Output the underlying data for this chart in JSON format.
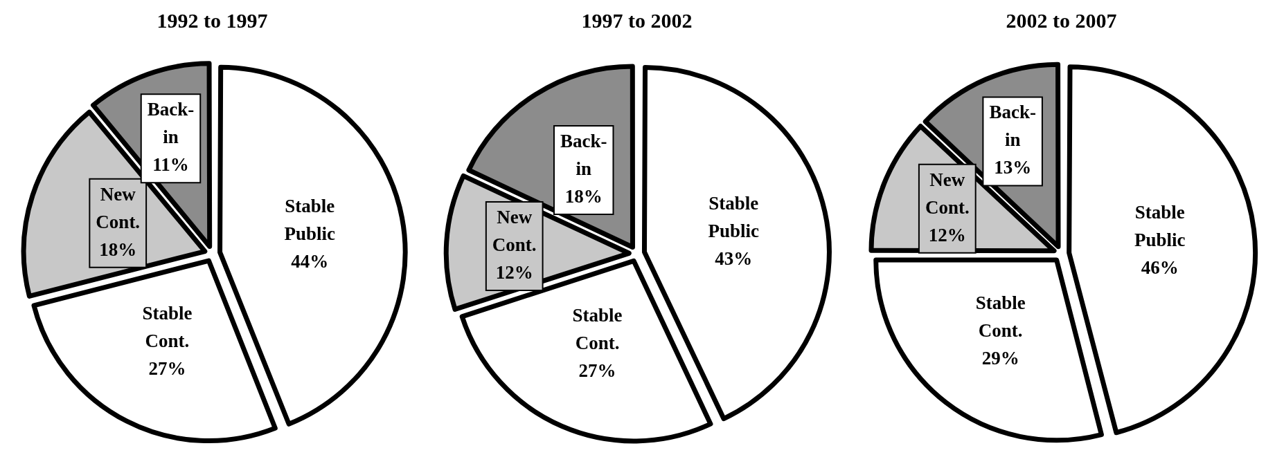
{
  "chart_data": [
    {
      "type": "pie",
      "title": "1992 to 1997",
      "categories": [
        "Stable Public",
        "Stable Cont.",
        "New Cont.",
        "Back-in"
      ],
      "values": [
        44,
        27,
        18,
        11
      ],
      "colors": [
        "#ffffff",
        "#ffffff",
        "#c8c8c8",
        "#8c8c8c"
      ],
      "value_labels": [
        "44%",
        "27%",
        "18%",
        "11%"
      ],
      "legend": false
    },
    {
      "type": "pie",
      "title": "1997 to 2002",
      "categories": [
        "Stable Public",
        "Stable Cont.",
        "New Cont.",
        "Back-in"
      ],
      "values": [
        43,
        27,
        12,
        18
      ],
      "colors": [
        "#ffffff",
        "#ffffff",
        "#c8c8c8",
        "#8c8c8c"
      ],
      "value_labels": [
        "43%",
        "27%",
        "12%",
        "18%"
      ],
      "legend": false
    },
    {
      "type": "pie",
      "title": "2002 to 2007",
      "categories": [
        "Stable Public",
        "Stable Cont.",
        "New Cont.",
        "Back-in"
      ],
      "values": [
        46,
        29,
        12,
        13
      ],
      "colors": [
        "#ffffff",
        "#ffffff",
        "#c8c8c8",
        "#8c8c8c"
      ],
      "value_labels": [
        "46%",
        "29%",
        "12%",
        "13%"
      ],
      "legend": false
    }
  ]
}
